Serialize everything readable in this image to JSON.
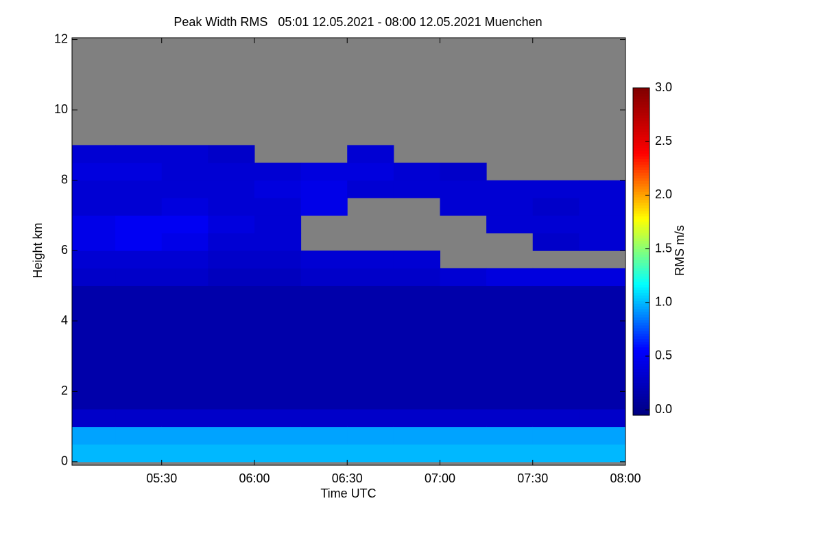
{
  "chart_data": {
    "type": "heatmap",
    "title": "Peak Width RMS   05:01 12.05.2021 - 08:00 12.05.2021 Muenchen",
    "x_label": "Time UTC",
    "y_label": "Height km",
    "colorbar_label": "RMS m/s",
    "xlim": [
      5.0167,
      8.0
    ],
    "xticks": [
      {
        "value": 5.5,
        "label": "05:30"
      },
      {
        "value": 6.0,
        "label": "06:00"
      },
      {
        "value": 6.5,
        "label": "06:30"
      },
      {
        "value": 7.0,
        "label": "07:00"
      },
      {
        "value": 7.5,
        "label": "07:30"
      },
      {
        "value": 8.0,
        "label": "08:00"
      }
    ],
    "ylim": [
      -0.1,
      12.05
    ],
    "yticks": [
      0,
      2,
      4,
      6,
      8,
      10,
      12
    ],
    "clim": [
      -0.05,
      3.0
    ],
    "cticks": [
      {
        "value": 0,
        "label": "0.0"
      },
      0.5,
      {
        "value": 1,
        "label": "1.0"
      },
      1.5,
      {
        "value": 2,
        "label": "2.0"
      },
      2.5,
      {
        "value": 3,
        "label": "3.0"
      }
    ],
    "colormap": [
      "#000080",
      "#0000ff",
      "#00ffff",
      "#ffff00",
      "#ff0000",
      "#800000"
    ],
    "nan_color": "#808080",
    "x": [
      5.0167,
      5.25,
      5.5,
      5.75,
      6.0,
      6.25,
      6.5,
      6.75,
      7.0,
      7.25,
      7.5,
      7.75
    ],
    "y": [
      0,
      0.5,
      1,
      1.5,
      2,
      2.5,
      3,
      3.5,
      4,
      4.5,
      5,
      5.5,
      6,
      6.5,
      7,
      7.5,
      8,
      8.5,
      9,
      9.5,
      10,
      10.5,
      11,
      11.5
    ],
    "values": [
      [
        1.0,
        0.95,
        0.3,
        0.15,
        0.15,
        0.15,
        0.15,
        0.15,
        0.15,
        0.15,
        0.3,
        0.35,
        0.45,
        0.45,
        0.35,
        0.35,
        0.4,
        0.35,
        null,
        null,
        null,
        null,
        null,
        null
      ],
      [
        1.0,
        0.95,
        0.3,
        0.15,
        0.15,
        0.15,
        0.15,
        0.15,
        0.15,
        0.15,
        0.3,
        0.35,
        0.5,
        0.5,
        0.35,
        0.35,
        0.4,
        0.35,
        null,
        null,
        null,
        null,
        null,
        null
      ],
      [
        1.0,
        0.95,
        0.3,
        0.15,
        0.15,
        0.15,
        0.15,
        0.15,
        0.15,
        0.15,
        0.3,
        0.35,
        0.45,
        0.5,
        0.4,
        0.35,
        0.35,
        0.35,
        null,
        null,
        null,
        null,
        null,
        null
      ],
      [
        1.0,
        0.95,
        0.3,
        0.15,
        0.15,
        0.15,
        0.15,
        0.15,
        0.15,
        0.15,
        0.25,
        0.3,
        0.35,
        0.4,
        0.35,
        0.35,
        0.35,
        0.3,
        null,
        null,
        null,
        null,
        null,
        null
      ],
      [
        1.0,
        0.95,
        0.3,
        0.15,
        0.15,
        0.15,
        0.15,
        0.15,
        0.15,
        0.15,
        0.25,
        0.3,
        0.35,
        0.35,
        0.35,
        0.4,
        0.35,
        null,
        null,
        null,
        null,
        null,
        null,
        null
      ],
      [
        1.0,
        0.95,
        0.3,
        0.15,
        0.15,
        0.15,
        0.15,
        0.15,
        0.15,
        0.15,
        0.3,
        0.35,
        null,
        null,
        0.45,
        0.45,
        0.4,
        null,
        null,
        null,
        null,
        null,
        null,
        null
      ],
      [
        1.0,
        0.95,
        0.3,
        0.15,
        0.15,
        0.15,
        0.15,
        0.15,
        0.15,
        0.15,
        0.3,
        0.35,
        null,
        null,
        null,
        0.35,
        0.4,
        0.35,
        null,
        null,
        null,
        null,
        null,
        null
      ],
      [
        1.0,
        0.95,
        0.3,
        0.15,
        0.15,
        0.15,
        0.15,
        0.15,
        0.15,
        0.15,
        0.3,
        0.35,
        null,
        null,
        null,
        0.35,
        0.35,
        null,
        null,
        null,
        null,
        null,
        null,
        null
      ],
      [
        1.0,
        0.95,
        0.3,
        0.15,
        0.15,
        0.15,
        0.15,
        0.15,
        0.15,
        0.15,
        0.35,
        null,
        null,
        null,
        0.35,
        0.35,
        0.3,
        null,
        null,
        null,
        null,
        null,
        null,
        null
      ],
      [
        1.0,
        0.95,
        0.3,
        0.15,
        0.15,
        0.15,
        0.15,
        0.15,
        0.15,
        0.15,
        0.4,
        null,
        null,
        0.35,
        0.35,
        0.35,
        null,
        null,
        null,
        null,
        null,
        null,
        null,
        null
      ],
      [
        1.0,
        0.95,
        0.3,
        0.15,
        0.15,
        0.15,
        0.15,
        0.15,
        0.15,
        0.15,
        0.4,
        null,
        0.3,
        0.35,
        0.3,
        0.35,
        null,
        null,
        null,
        null,
        null,
        null,
        null,
        null
      ],
      [
        1.0,
        0.95,
        0.3,
        0.15,
        0.15,
        0.15,
        0.15,
        0.15,
        0.15,
        0.15,
        0.4,
        null,
        0.35,
        0.35,
        0.35,
        0.35,
        null,
        null,
        null,
        null,
        null,
        null,
        null,
        null
      ]
    ]
  }
}
